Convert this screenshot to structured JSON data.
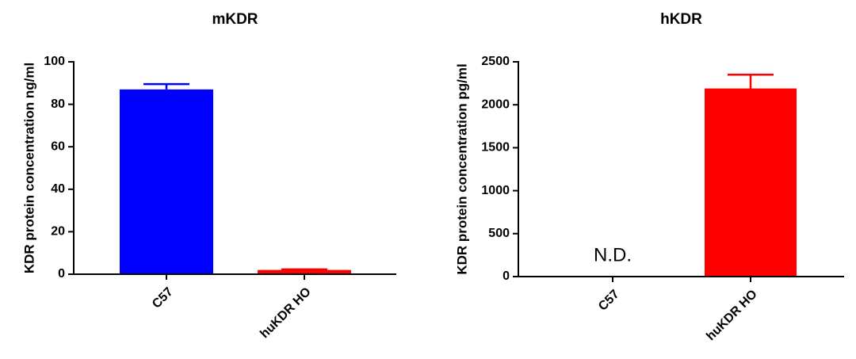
{
  "chart_data": [
    {
      "type": "bar",
      "title": "mKDR",
      "y_label": "KDR protein concentration ng/ml",
      "categories": [
        "C57",
        "huKDR HO"
      ],
      "values": [
        87,
        2
      ],
      "errors": [
        2.5,
        0.3
      ],
      "colors": [
        "#0000ff",
        "#ff0000"
      ],
      "ylim": [
        0,
        100
      ],
      "yticks": [
        0,
        20,
        40,
        60,
        80,
        100
      ]
    },
    {
      "type": "bar",
      "title": "hKDR",
      "y_label": "KDR protein concentration pg/ml",
      "categories": [
        "C57",
        "huKDR HO"
      ],
      "values": [
        null,
        2190
      ],
      "errors": [
        null,
        160
      ],
      "colors": [
        "#0000ff",
        "#ff0000"
      ],
      "annotations": [
        {
          "text": "N.D.",
          "category": "C57"
        }
      ],
      "ylim": [
        0,
        2500
      ],
      "yticks": [
        0,
        500,
        1000,
        1500,
        2000,
        2500
      ]
    }
  ]
}
